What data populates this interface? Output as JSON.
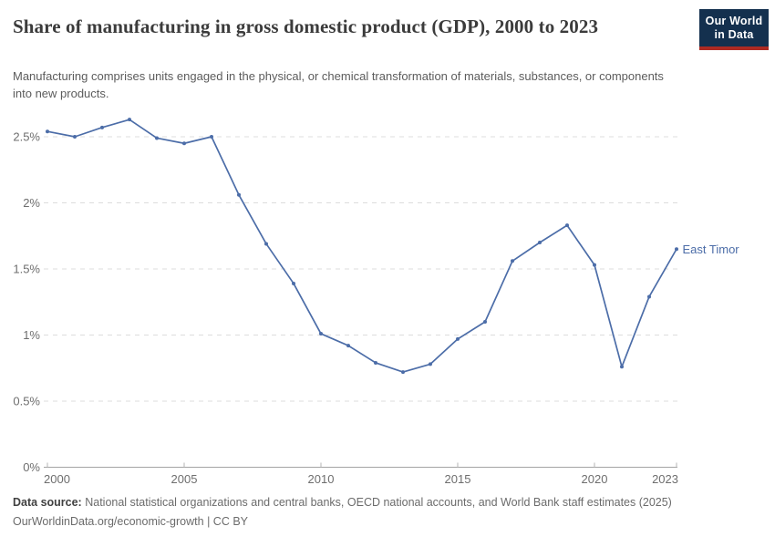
{
  "header": {
    "logo": {
      "line1": "Our World",
      "line2": "in Data",
      "bg_color": "#14304e",
      "accent_color": "#ad2a22"
    }
  },
  "chart_data": {
    "type": "line",
    "title": "Share of manufacturing in gross domestic product (GDP), 2000 to 2023",
    "subtitle": "Manufacturing comprises units engaged in the physical, or chemical transformation of materials, substances, or components into new products.",
    "xlabel": "",
    "ylabel": "",
    "xlim": [
      2000,
      2023
    ],
    "ylim": [
      0,
      2.7
    ],
    "grid": "horizontal-dashed",
    "legend": "line-end-label",
    "x": [
      2000,
      2001,
      2002,
      2003,
      2004,
      2005,
      2006,
      2007,
      2008,
      2009,
      2010,
      2011,
      2012,
      2013,
      2014,
      2015,
      2016,
      2017,
      2018,
      2019,
      2020,
      2021,
      2022,
      2023
    ],
    "series": [
      {
        "name": "East Timor",
        "color": "#4c6da8",
        "values": [
          2.54,
          2.5,
          2.57,
          2.63,
          2.49,
          2.45,
          2.5,
          2.06,
          1.69,
          1.39,
          1.01,
          0.92,
          0.79,
          0.72,
          0.78,
          0.97,
          1.1,
          1.56,
          1.7,
          1.83,
          1.53,
          0.76,
          1.29,
          1.65
        ]
      }
    ],
    "x_ticks": {
      "years": [
        2000,
        2005,
        2010,
        2015,
        2020,
        2023
      ],
      "labels": [
        "2000",
        "2005",
        "2010",
        "2015",
        "2020",
        "2023"
      ]
    },
    "y_ticks": [
      {
        "value": 0,
        "label": "0%"
      },
      {
        "value": 0.5,
        "label": "0.5%"
      },
      {
        "value": 1,
        "label": "1%"
      },
      {
        "value": 1.5,
        "label": "1.5%"
      },
      {
        "value": 2,
        "label": "2%"
      },
      {
        "value": 2.5,
        "label": "2.5%"
      }
    ]
  },
  "footer": {
    "source_label": "Data source:",
    "source_text": "National statistical organizations and central banks, OECD national accounts, and World Bank staff estimates (2025)",
    "url": "OurWorldinData.org/economic-growth",
    "separator": "|",
    "license": "CC BY"
  }
}
